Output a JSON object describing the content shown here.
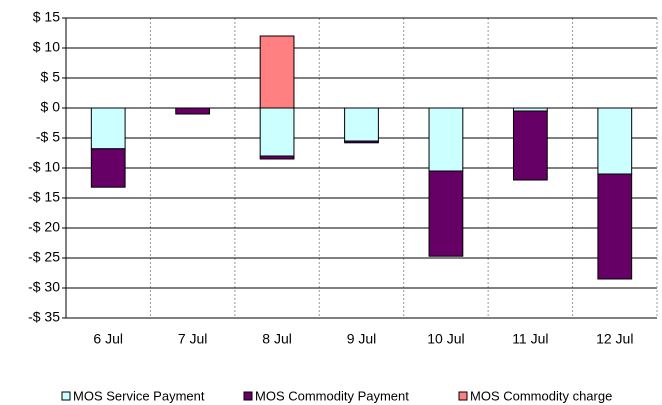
{
  "chart_data": {
    "type": "stacked-bar",
    "categories": [
      "6 Jul",
      "7 Jul",
      "8 Jul",
      "9 Jul",
      "10 Jul",
      "11 Jul",
      "12 Jul"
    ],
    "series": [
      {
        "name": "MOS Service Payment",
        "color": "#ccffff",
        "values": [
          -6.8,
          0,
          -8,
          -5.5,
          -10.5,
          -0.5,
          -11
        ]
      },
      {
        "name": "MOS Commodity Payment",
        "color": "#660066",
        "values": [
          -6.4,
          -1,
          -0.5,
          -0.3,
          -14.2,
          -11.5,
          -17.5
        ]
      },
      {
        "name": "MOS Commodity charge",
        "color": "#ff8080",
        "values": [
          0,
          0,
          12,
          0,
          0,
          0,
          0
        ]
      }
    ],
    "ylim": [
      -35,
      15
    ],
    "yticks": [
      {
        "value": 15,
        "label": "$ 15"
      },
      {
        "value": 10,
        "label": "$ 10"
      },
      {
        "value": 5,
        "label": "$ 5"
      },
      {
        "value": 0,
        "label": "$ 0"
      },
      {
        "value": -5,
        "label": "-$ 5"
      },
      {
        "value": -10,
        "label": "-$ 10"
      },
      {
        "value": -15,
        "label": "-$ 15"
      },
      {
        "value": -20,
        "label": "-$ 20"
      },
      {
        "value": -25,
        "label": "-$ 25"
      },
      {
        "value": -30,
        "label": "-$ 30"
      },
      {
        "value": -35,
        "label": "-$ 35"
      }
    ],
    "grid": true
  }
}
